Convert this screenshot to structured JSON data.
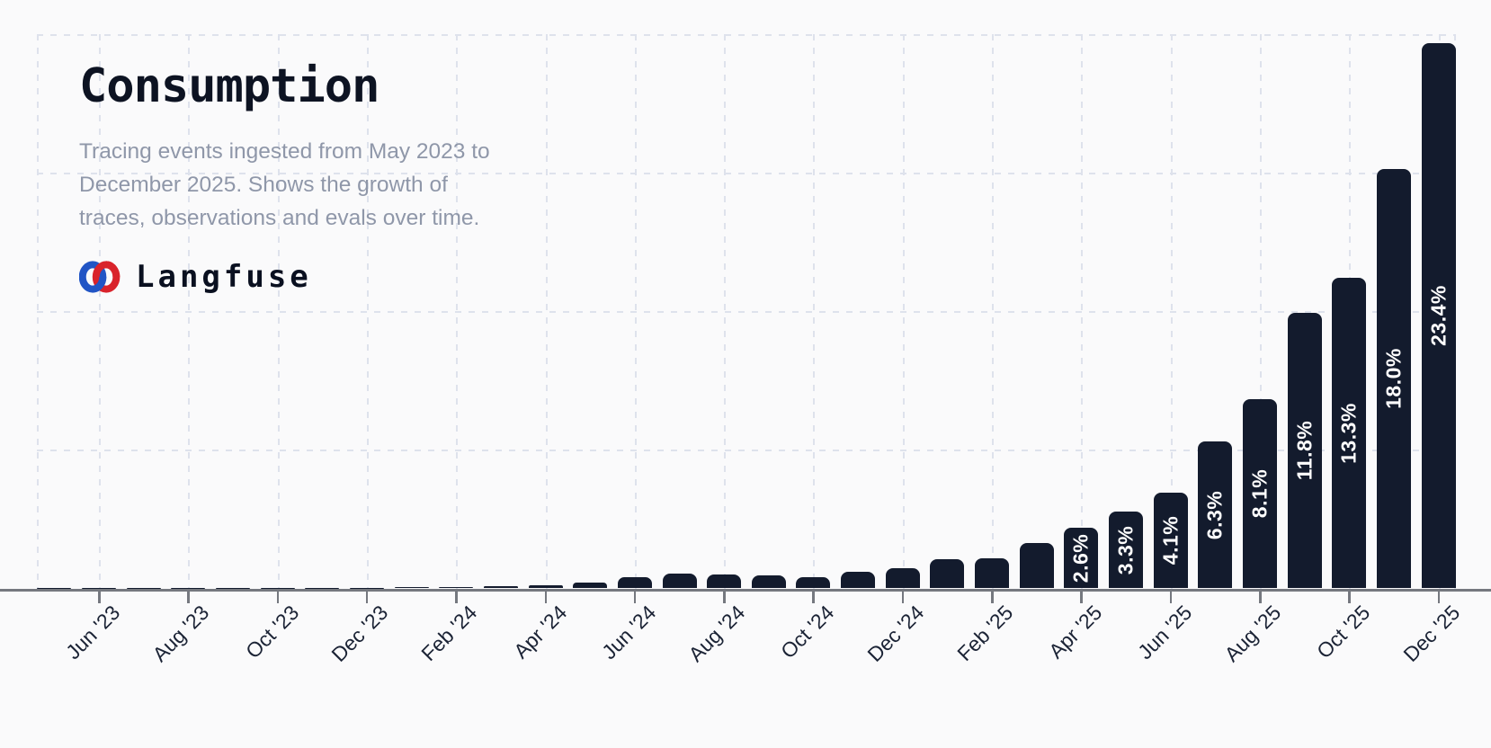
{
  "header": {
    "title": "Consumption",
    "subtitle_lines": [
      "Tracing events ingested from May 2023 to",
      "December 2025. Shows the growth of",
      "traces, observations and evals over time."
    ],
    "brand_name": "Langfuse"
  },
  "chart_data": {
    "type": "bar",
    "title": "Consumption",
    "xlabel": "",
    "ylabel": "",
    "legend": "none",
    "grid": "dashed",
    "ylim_pct": [
      0,
      23.7
    ],
    "months": [
      "May '23",
      "Jun '23",
      "Jul '23",
      "Aug '23",
      "Sep '23",
      "Oct '23",
      "Nov '23",
      "Dec '23",
      "Jan '24",
      "Feb '24",
      "Mar '24",
      "Apr '24",
      "May '24",
      "Jun '24",
      "Jul '24",
      "Aug '24",
      "Sep '24",
      "Oct '24",
      "Nov '24",
      "Dec '24",
      "Jan '25",
      "Feb '25",
      "Mar '25",
      "Apr '25",
      "May '25",
      "Jun '25",
      "Jul '25",
      "Aug '25",
      "Sep '25",
      "Oct '25",
      "Nov '25",
      "Dec '25"
    ],
    "values_pct": [
      0.01,
      0.01,
      0.01,
      0.02,
      0.02,
      0.02,
      0.03,
      0.03,
      0.04,
      0.05,
      0.09,
      0.13,
      0.26,
      0.47,
      0.64,
      0.61,
      0.55,
      0.49,
      0.71,
      0.86,
      1.24,
      1.28,
      1.95,
      2.6,
      3.3,
      4.1,
      6.3,
      8.1,
      11.8,
      13.3,
      18.0,
      23.4
    ],
    "bar_labels": [
      "",
      "",
      "",
      "",
      "",
      "",
      "",
      "",
      "",
      "",
      "",
      "",
      "",
      "",
      "",
      "",
      "",
      "",
      "",
      "",
      "",
      "",
      "",
      "2.6%",
      "3.3%",
      "4.1%",
      "6.3%",
      "8.1%",
      "11.8%",
      "13.3%",
      "18.0%",
      "23.4%"
    ],
    "x_tick_labels": [
      "Jun '23",
      "Aug '23",
      "Oct '23",
      "Dec '23",
      "Feb '24",
      "Apr '24",
      "Jun '24",
      "Aug '24",
      "Oct '24",
      "Dec '24",
      "Feb '25",
      "Apr '25",
      "Jun '25",
      "Aug '25",
      "Oct '25",
      "Dec '25"
    ]
  },
  "colors": {
    "background": "#fafafb",
    "bar": "#131b2d",
    "bar_label_text": "#ffffff",
    "grid": "#dee2ec",
    "axis": "#75787f",
    "title": "#0d1322",
    "subtitle": "#8f97a9",
    "x_label": "#1b2335",
    "logo_red": "#d9232b",
    "logo_blue": "#2155c5"
  }
}
